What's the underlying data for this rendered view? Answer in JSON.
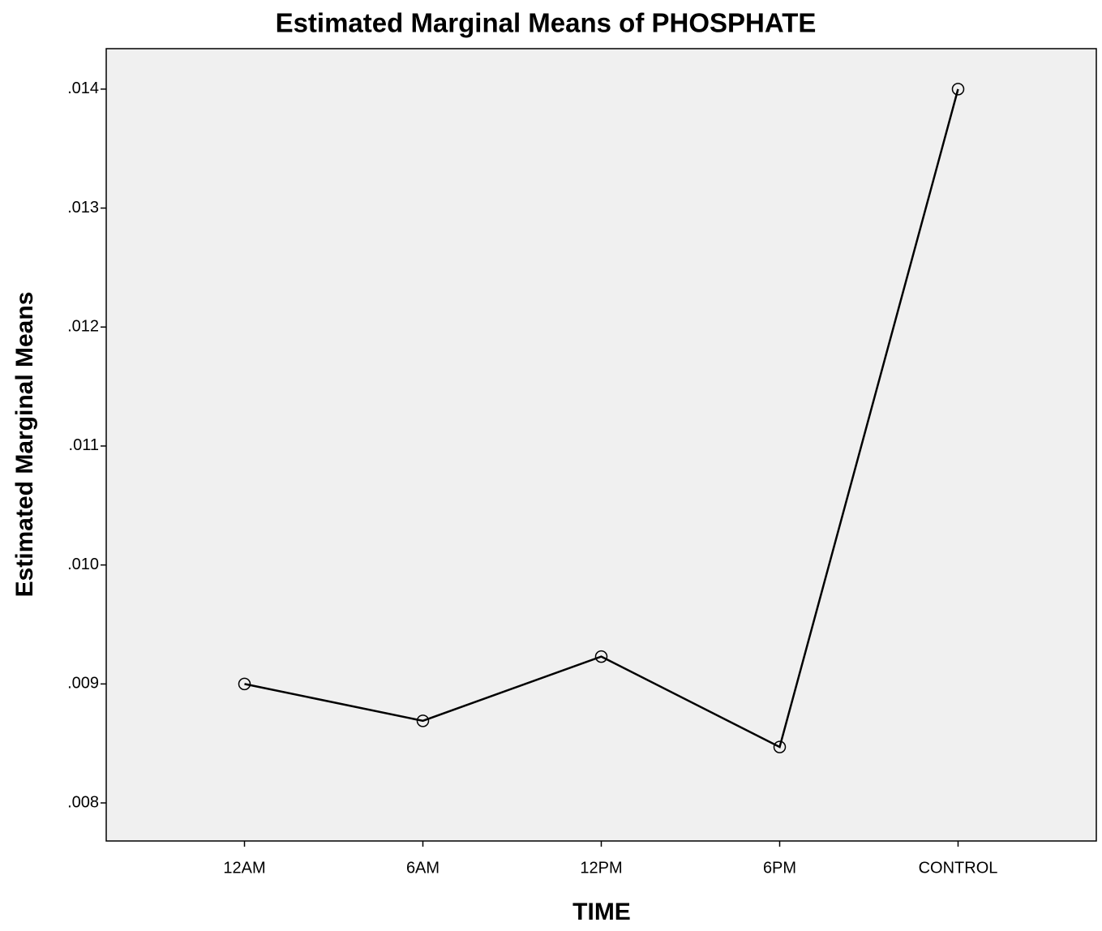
{
  "chart_data": {
    "type": "line",
    "title": "Estimated Marginal Means of PHOSPHATE",
    "x_label": "TIME",
    "y_label": "Estimated Marginal Means",
    "categories": [
      "12AM",
      "6AM",
      "12PM",
      "6PM",
      "CONTROL"
    ],
    "series": [
      {
        "name": "PHOSPHATE",
        "color": "#000000",
        "values": [
          0.009,
          0.00869,
          0.00923,
          0.00847,
          0.014
        ]
      }
    ],
    "ylim": [
      0.00768,
      0.01434
    ],
    "yticks": [
      {
        "value": 0.008,
        "label": ".008"
      },
      {
        "value": 0.009,
        "label": ".009"
      },
      {
        "value": 0.01,
        "label": ".010"
      },
      {
        "value": 0.011,
        "label": ".011"
      },
      {
        "value": 0.012,
        "label": ".012"
      },
      {
        "value": 0.013,
        "label": ".013"
      },
      {
        "value": 0.014,
        "label": ".014"
      }
    ],
    "grid": false
  }
}
